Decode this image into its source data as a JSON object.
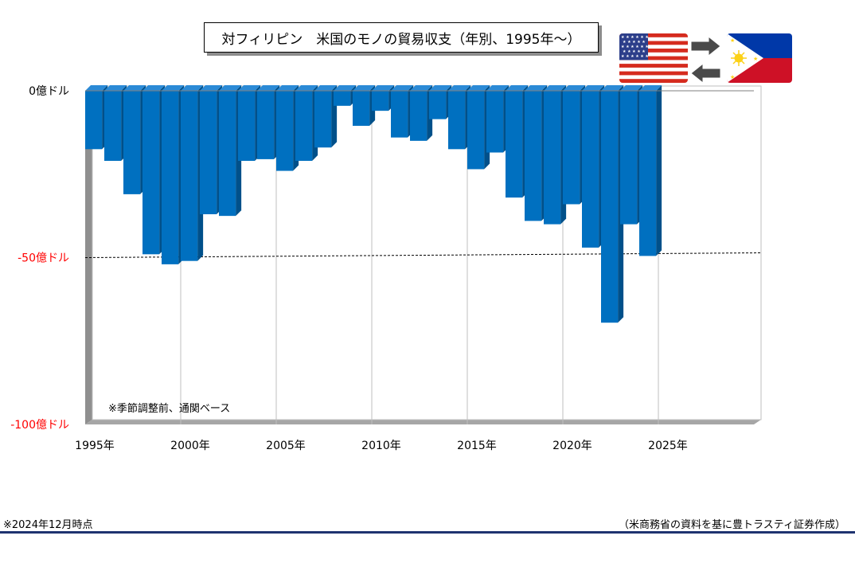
{
  "title": "対フィリピン　米国のモノの貿易収支（年別、1995年～）",
  "note": "※季節調整前、通関ベース",
  "footer": {
    "left": "※2024年12月時点",
    "right": "（米商務省の資料を基に豊トラスティ証券作成）"
  },
  "icons": {
    "flag_left": "us-flag-icon",
    "flag_right": "philippines-flag-icon",
    "arrow_right": "right-arrow-icon",
    "arrow_left": "left-arrow-icon"
  },
  "colors": {
    "bar": "#0070c0",
    "negative_tick": "#ff0000",
    "footer_rule": "#1f3370"
  },
  "chart_data": {
    "type": "bar",
    "title": "対フィリピン　米国のモノの貿易収支（年別、1995年～）",
    "xlabel": "",
    "ylabel": "",
    "ylim": [
      -100,
      0
    ],
    "xlim": [
      1995,
      2030
    ],
    "grid": "vertical lines every 5 years; dashed line at -50",
    "y_ticks": [
      {
        "value": 0,
        "label": "0億ドル",
        "color": "#000000"
      },
      {
        "value": -50,
        "label": "-50億ドル",
        "color": "#ff0000"
      },
      {
        "value": -100,
        "label": "-100億ドル",
        "color": "#ff0000"
      }
    ],
    "x_ticks": [
      {
        "value": 1995,
        "label": "1995年"
      },
      {
        "value": 2000,
        "label": "2000年"
      },
      {
        "value": 2005,
        "label": "2005年"
      },
      {
        "value": 2010,
        "label": "2010年"
      },
      {
        "value": 2015,
        "label": "2015年"
      },
      {
        "value": 2020,
        "label": "2020年"
      },
      {
        "value": 2025,
        "label": "2025年"
      }
    ],
    "categories": [
      1995,
      1996,
      1997,
      1998,
      1999,
      2000,
      2001,
      2002,
      2003,
      2004,
      2005,
      2006,
      2007,
      2008,
      2009,
      2010,
      2011,
      2012,
      2013,
      2014,
      2015,
      2016,
      2017,
      2018,
      2019,
      2020,
      2021,
      2022,
      2023,
      2024
    ],
    "values": [
      -17.5,
      -21,
      -31,
      -49,
      -52,
      -51,
      -37,
      -37.5,
      -21,
      -20.5,
      -24,
      -21,
      -17,
      -4.5,
      -10.5,
      -6,
      -14,
      -15,
      -8.5,
      -17.5,
      -23.5,
      -18.5,
      -32,
      -39,
      -40,
      -34,
      -47,
      -69.5,
      -40,
      -49.5
    ]
  }
}
